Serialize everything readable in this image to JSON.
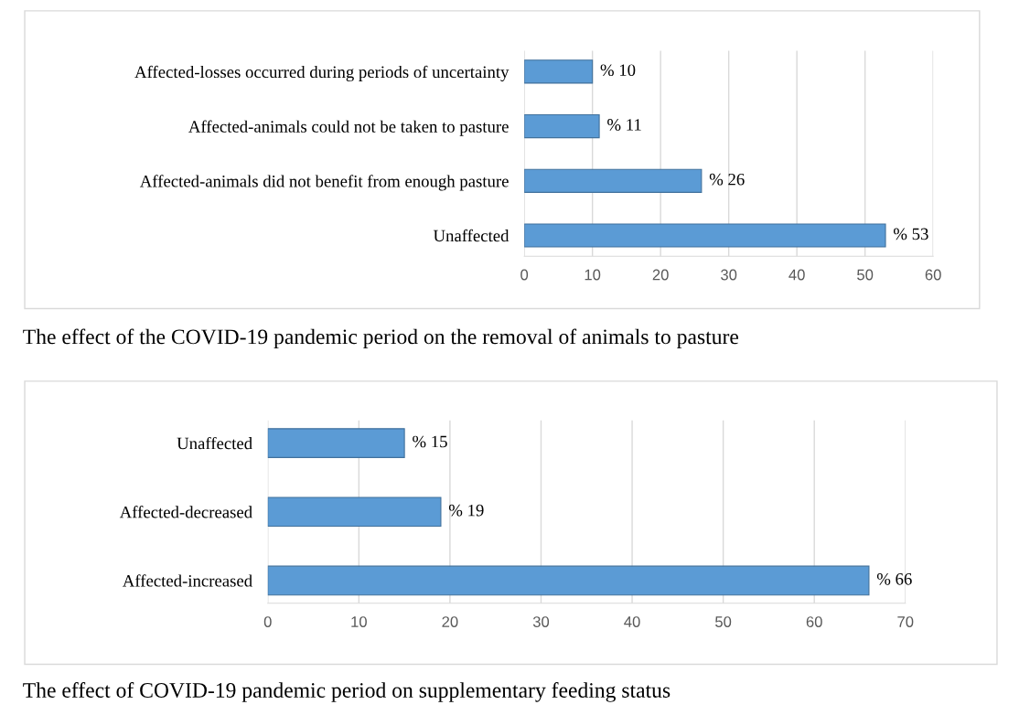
{
  "chart_data": [
    {
      "type": "bar",
      "orientation": "horizontal",
      "title": "The effect of the COVID-19 pandemic period on the removal of animals to pasture",
      "categories": [
        "Affected-losses occurred during periods of uncertainty",
        "Affected-animals could not be taken to pasture",
        "Affected-animals did not benefit from enough pasture",
        "Unaffected"
      ],
      "values": [
        10,
        11,
        26,
        53
      ],
      "value_labels": [
        "% 10",
        "% 11",
        "% 26",
        "% 53"
      ],
      "color": "#5b9bd5",
      "xlim": [
        0,
        60
      ],
      "xticks": [
        0,
        10,
        20,
        30,
        40,
        50,
        60
      ],
      "grid": "x",
      "legend": false
    },
    {
      "type": "bar",
      "orientation": "horizontal",
      "title": "The effect of COVID-19 pandemic period on supplementary feeding status",
      "categories": [
        "Unaffected",
        "Affected-decreased",
        "Affected-increased"
      ],
      "values": [
        15,
        19,
        66
      ],
      "value_labels": [
        "% 15",
        "% 19",
        "% 66"
      ],
      "color": "#5b9bd5",
      "xlim": [
        0,
        70
      ],
      "xticks": [
        0,
        10,
        20,
        30,
        40,
        50,
        60,
        70
      ],
      "grid": "x",
      "legend": false
    }
  ]
}
